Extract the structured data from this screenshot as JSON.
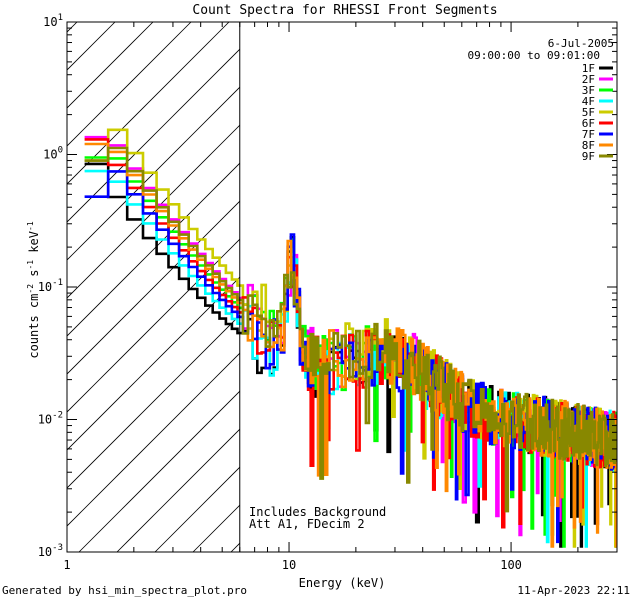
{
  "chart_data": {
    "type": "line",
    "title": "Count Spectra for RHESSI Front Segments",
    "xlabel": "Energy (keV)",
    "ylabel_parts": {
      "base": "counts cm",
      "exp1": "-2",
      "mid1": " s",
      "exp2": "-1",
      "mid2": " keV",
      "exp3": "-1"
    },
    "x_scale": "log",
    "y_scale": "log",
    "xlim": [
      1,
      300
    ],
    "ylim": [
      0.001,
      10
    ],
    "x_ticks": [
      {
        "value": 1,
        "label": "1"
      },
      {
        "value": 10,
        "label": "10"
      },
      {
        "value": 100,
        "label": "100"
      }
    ],
    "y_ticks": [
      {
        "value": 0.001,
        "base": "10",
        "exp": "-3"
      },
      {
        "value": 0.01,
        "base": "10",
        "exp": "-2"
      },
      {
        "value": 0.1,
        "base": "10",
        "exp": "-1"
      },
      {
        "value": 1,
        "base": "10",
        "exp": "0"
      },
      {
        "value": 10,
        "base": "10",
        "exp": "1"
      }
    ],
    "hatched_region_xmax": 6,
    "annotations": {
      "date": "6-Jul-2005",
      "time_range": "09:00:00 to 09:01:00",
      "background_note": "Includes Background",
      "attenuator_note": "Att A1, FDecim 2"
    },
    "series": [
      {
        "name": "1F",
        "color": "#000000",
        "seed": 11,
        "offset": -0.3,
        "lowCut": 0.85
      },
      {
        "name": "2F",
        "color": "#ff00ff",
        "seed": 23,
        "offset": 0.1,
        "lowCut": 1.35
      },
      {
        "name": "3F",
        "color": "#00ff00",
        "seed": 37,
        "offset": 0.0,
        "lowCut": 0.95
      },
      {
        "name": "4F",
        "color": "#00ffff",
        "seed": 41,
        "offset": -0.18,
        "lowCut": 0.75
      },
      {
        "name": "5F",
        "color": "#cccc00",
        "seed": 53,
        "offset": 0.22,
        "lowCut": 0.9
      },
      {
        "name": "6F",
        "color": "#ff0000",
        "seed": 67,
        "offset": -0.05,
        "lowCut": 1.3
      },
      {
        "name": "7F",
        "color": "#0000ff",
        "seed": 79,
        "offset": -0.1,
        "lowCut": 0.48
      },
      {
        "name": "8F",
        "color": "#ff8800",
        "seed": 83,
        "offset": 0.05,
        "lowCut": 1.2
      },
      {
        "name": "9F",
        "color": "#888800",
        "seed": 97,
        "offset": 0.08,
        "lowCut": 0.9
      }
    ]
  },
  "footer": {
    "generated_by": "Generated by hsi_min_spectra_plot.pro",
    "timestamp": "11-Apr-2023 22:11"
  }
}
